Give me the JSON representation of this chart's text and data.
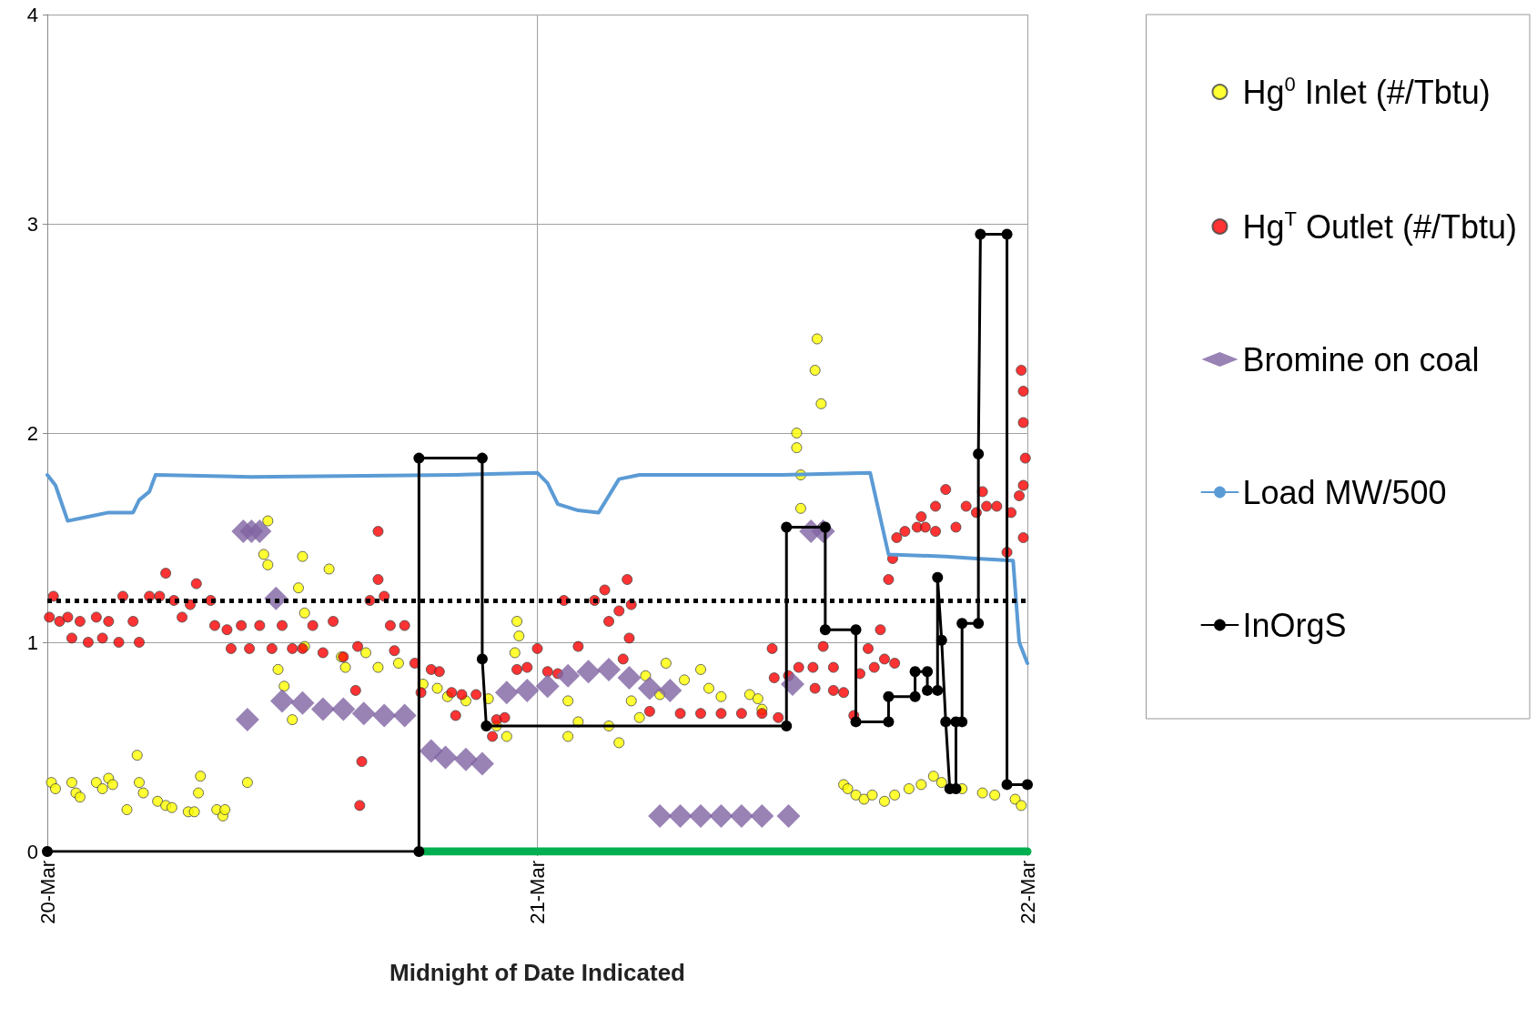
{
  "chart_data": {
    "type": "scatter",
    "xlabel": "Midnight of Date Indicated",
    "xlim": [
      "--03-20",
      "--03-22"
    ],
    "xticks": [
      {
        "value": "--03-20",
        "label": "20-Mar"
      },
      {
        "value": "--03-21",
        "label": "21-Mar"
      },
      {
        "value": "--03-22",
        "label": "22-Mar"
      }
    ],
    "ylim": [
      0,
      4
    ],
    "yticks": [
      0,
      1,
      2,
      3,
      4
    ],
    "grid": true,
    "legend": "right",
    "ref_lines": [
      {
        "axis": "y",
        "value": 1.2,
        "color": "#000000",
        "line_style": "dotted"
      }
    ],
    "series": [
      {
        "name": "Hg$^{0}$ Inlet (#/Tbtu)",
        "marker": "circle",
        "color": "#ffff00",
        "x": [
          "--03-20T00:12",
          "--03-20T00:24",
          "--03-20T01:12",
          "--03-20T01:24",
          "--03-20T01:36",
          "--03-20T02:24",
          "--03-20T02:42",
          "--03-20T03:00",
          "--03-20T03:12",
          "--03-20T03:54",
          "--03-20T04:24",
          "--03-20T04:30",
          "--03-20T04:42",
          "--03-20T05:24",
          "--03-20T05:48",
          "--03-20T06:06",
          "--03-20T06:54",
          "--03-20T07:12",
          "--03-20T07:24",
          "--03-20T07:30",
          "--03-20T08:18",
          "--03-20T08:36",
          "--03-20T08:42",
          "--03-20T09:48",
          "--03-20T10:48",
          "--03-20T10:36",
          "--03-20T10:48",
          "--03-20T12:30",
          "--03-20T13:48",
          "--03-20T12:18",
          "--03-20T12:36",
          "--03-20T12:36",
          "--03-20T11:18",
          "--03-20T11:36",
          "--03-20T12:00",
          "--03-20T14:24",
          "--03-20T14:36",
          "--03-20T15:36",
          "--03-20T16:12",
          "--03-20T17:12",
          "--03-20T18:24",
          "--03-20T19:06",
          "--03-20T19:36",
          "--03-20T20:30",
          "--03-20T21:36",
          "--03-20T22:00",
          "--03-20T22:30",
          "--03-20T23:00",
          "--03-20T23:06",
          "--03-20T22:54",
          "--03-21T01:30",
          "--03-21T02:00",
          "--03-21T01:30",
          "--03-21T03:30",
          "--03-21T04:00",
          "--03-21T04:36",
          "--03-21T05:00",
          "--03-21T05:18",
          "--03-21T06:00",
          "--03-21T06:18",
          "--03-21T07:12",
          "--03-21T08:00",
          "--03-21T08:24",
          "--03-21T09:00",
          "--03-21T10:24",
          "--03-21T10:48",
          "--03-21T11:00",
          "--03-21T12:42",
          "--03-21T12:42",
          "--03-21T12:54",
          "--03-21T12:54",
          "--03-21T13:42",
          "--03-21T13:36",
          "--03-21T13:54",
          "--03-21T14:00",
          "--03-21T15:00",
          "--03-21T15:12",
          "--03-21T15:36",
          "--03-21T16:00",
          "--03-21T16:24",
          "--03-21T17:00",
          "--03-21T17:30",
          "--03-21T18:12",
          "--03-21T18:48",
          "--03-21T19:24",
          "--03-21T19:48",
          "--03-21T20:48",
          "--03-21T21:48",
          "--03-21T22:24",
          "--03-21T23:24",
          "--03-21T23:42"
        ],
        "values": [
          0.33,
          0.3,
          0.33,
          0.28,
          0.26,
          0.33,
          0.3,
          0.35,
          0.32,
          0.2,
          0.46,
          0.33,
          0.28,
          0.24,
          0.22,
          0.21,
          0.19,
          0.19,
          0.28,
          0.36,
          0.2,
          0.17,
          0.2,
          0.33,
          1.58,
          1.42,
          1.37,
          1.41,
          1.35,
          1.26,
          1.14,
          0.98,
          0.87,
          0.79,
          0.63,
          0.93,
          0.88,
          0.95,
          0.88,
          0.9,
          0.8,
          0.78,
          0.74,
          0.72,
          0.73,
          0.6,
          0.55,
          1.1,
          1.03,
          0.95,
          0.72,
          0.62,
          0.55,
          0.6,
          0.52,
          0.72,
          0.64,
          0.84,
          0.75,
          0.9,
          0.82,
          0.87,
          0.78,
          0.74,
          0.75,
          0.73,
          0.68,
          2.0,
          1.93,
          1.8,
          1.64,
          2.45,
          2.3,
          2.14,
          1.55,
          0.32,
          0.3,
          0.27,
          0.25,
          0.27,
          0.24,
          0.27,
          0.3,
          0.32,
          0.36,
          0.33,
          0.3,
          0.28,
          0.27,
          0.25,
          0.22
        ]
      },
      {
        "name": "Hg$^{T}$ Outlet (#/Tbtu)",
        "marker": "circle",
        "color": "#ff0000",
        "x": [
          "--03-20T00:06",
          "--03-20T00:18",
          "--03-20T00:36",
          "--03-20T01:00",
          "--03-20T01:12",
          "--03-20T01:36",
          "--03-20T02:00",
          "--03-20T02:24",
          "--03-20T02:42",
          "--03-20T03:00",
          "--03-20T03:30",
          "--03-20T03:42",
          "--03-20T04:12",
          "--03-20T04:30",
          "--03-20T05:00",
          "--03-20T05:30",
          "--03-20T05:48",
          "--03-20T06:12",
          "--03-20T06:36",
          "--03-20T07:00",
          "--03-20T07:18",
          "--03-20T08:00",
          "--03-20T08:12",
          "--03-20T08:48",
          "--03-20T09:00",
          "--03-20T09:30",
          "--03-20T09:54",
          "--03-20T10:24",
          "--03-20T11:00",
          "--03-20T11:30",
          "--03-20T12:00",
          "--03-20T12:30",
          "--03-20T13:00",
          "--03-20T13:30",
          "--03-20T14:00",
          "--03-20T14:30",
          "--03-20T15:06",
          "--03-20T15:24",
          "--03-20T15:18",
          "--03-20T15:12",
          "--03-20T15:48",
          "--03-20T16:12",
          "--03-20T16:12",
          "--03-20T16:30",
          "--03-20T16:48",
          "--03-20T17:00",
          "--03-20T17:30",
          "--03-20T18:00",
          "--03-20T18:18",
          "--03-20T18:48",
          "--03-20T19:12",
          "--03-20T19:48",
          "--03-20T20:18",
          "--03-20T21:00",
          "--03-20T20:00",
          "--03-20T21:48",
          "--03-20T22:00",
          "--03-20T22:24",
          "--03-20T23:00",
          "--03-20T23:30",
          "--03-21T00:00",
          "--03-21T00:30",
          "--03-21T01:00",
          "--03-21T01:18",
          "--03-21T02:00",
          "--03-21T02:48",
          "--03-21T03:18",
          "--03-21T03:30",
          "--03-21T04:00",
          "--03-21T04:24",
          "--03-21T04:30",
          "--03-21T04:12",
          "--03-21T04:36",
          "--03-21T05:30",
          "--03-21T07:00",
          "--03-21T08:00",
          "--03-21T09:00",
          "--03-21T10:00",
          "--03-21T11:00",
          "--03-21T11:48",
          "--03-21T11:30",
          "--03-21T11:36",
          "--03-21T12:18",
          "--03-21T12:48",
          "--03-21T13:30",
          "--03-21T14:00",
          "--03-21T14:30",
          "--03-21T13:36",
          "--03-21T14:30",
          "--03-21T15:00",
          "--03-21T15:30",
          "--03-21T15:48",
          "--03-21T16:12",
          "--03-21T16:48",
          "--03-21T16:30",
          "--03-21T17:00",
          "--03-21T17:30",
          "--03-21T17:12",
          "--03-21T17:24",
          "--03-21T17:36",
          "--03-21T18:00",
          "--03-21T18:36",
          "--03-21T19:00",
          "--03-21T19:30",
          "--03-21T18:48",
          "--03-21T19:30",
          "--03-21T20:00",
          "--03-21T20:30",
          "--03-21T21:00",
          "--03-21T21:30",
          "--03-21T21:48",
          "--03-21T22:00",
          "--03-21T22:30",
          "--03-21T23:12",
          "--03-21T23:36",
          "--03-21T23:48",
          "--03-21T23:42",
          "--03-21T23:48",
          "--03-21T23:48",
          "--03-21T23:54",
          "--03-21T23:48",
          "--03-21T23:00"
        ],
        "values": [
          1.12,
          1.22,
          1.1,
          1.12,
          1.02,
          1.1,
          1.0,
          1.12,
          1.02,
          1.1,
          1.0,
          1.22,
          1.1,
          1.0,
          1.22,
          1.22,
          1.33,
          1.2,
          1.12,
          1.18,
          1.28,
          1.2,
          1.08,
          1.06,
          0.97,
          1.08,
          0.97,
          1.08,
          0.97,
          1.08,
          0.97,
          0.97,
          1.08,
          0.95,
          1.1,
          0.93,
          0.77,
          0.43,
          0.22,
          0.98,
          1.2,
          1.53,
          1.3,
          1.22,
          1.08,
          0.96,
          1.08,
          0.9,
          0.76,
          0.87,
          0.86,
          0.76,
          0.75,
          0.75,
          0.65,
          0.55,
          0.63,
          0.64,
          0.87,
          0.88,
          0.97,
          0.86,
          0.85,
          1.2,
          0.98,
          1.2,
          1.25,
          1.1,
          1.15,
          1.3,
          1.02,
          0.92,
          1.18,
          0.67,
          0.66,
          0.66,
          0.66,
          0.66,
          0.66,
          0.64,
          0.97,
          0.83,
          0.84,
          0.88,
          0.88,
          0.98,
          0.88,
          0.78,
          0.77,
          0.76,
          0.65,
          0.85,
          0.97,
          1.06,
          0.88,
          0.92,
          0.9,
          1.3,
          1.4,
          1.5,
          1.53,
          1.55,
          1.55,
          1.53,
          1.6,
          1.65,
          1.73,
          1.55,
          1.65,
          1.62,
          1.72,
          1.65,
          1.65,
          1.62,
          1.7,
          1.75,
          2.3,
          2.2,
          2.05,
          1.88,
          1.5,
          1.43
        ]
      },
      {
        "name": "Bromine on coal",
        "marker": "diamond",
        "color": "#8064a2",
        "x": [
          "--03-20T09:36",
          "--03-20T10:00",
          "--03-20T10:24",
          "--03-20T11:12",
          "--03-20T09:48",
          "--03-20T11:30",
          "--03-20T12:30",
          "--03-20T13:30",
          "--03-20T14:30",
          "--03-20T15:30",
          "--03-20T16:30",
          "--03-20T17:30",
          "--03-20T18:48",
          "--03-20T19:30",
          "--03-20T20:30",
          "--03-20T21:18",
          "--03-20T22:30",
          "--03-20T23:30",
          "--03-21T00:30",
          "--03-21T01:30",
          "--03-21T02:30",
          "--03-21T03:30",
          "--03-21T04:30",
          "--03-21T05:30",
          "--03-21T06:30",
          "--03-21T06:00",
          "--03-21T07:00",
          "--03-21T08:00",
          "--03-21T09:00",
          "--03-21T10:00",
          "--03-21T11:00",
          "--03-21T12:18",
          "--03-21T12:30",
          "--03-21T13:24",
          "--03-21T14:00"
        ],
        "values": [
          1.53,
          1.53,
          1.53,
          1.21,
          0.63,
          0.72,
          0.71,
          0.68,
          0.68,
          0.66,
          0.65,
          0.65,
          0.48,
          0.45,
          0.44,
          0.42,
          0.76,
          0.77,
          0.79,
          0.84,
          0.86,
          0.87,
          0.83,
          0.78,
          0.77,
          0.17,
          0.17,
          0.17,
          0.17,
          0.17,
          0.17,
          0.17,
          0.8,
          1.53,
          1.53
        ]
      },
      {
        "name": "Load MW/500",
        "type": "line",
        "marker": "none",
        "color": "#5b9bd5",
        "x": [
          "--03-20T00:00",
          "--03-20T00:24",
          "--03-20T01:00",
          "--03-20T02:00",
          "--03-20T03:00",
          "--03-20T04:12",
          "--03-20T04:30",
          "--03-20T05:00",
          "--03-20T05:18",
          "--03-20T10:00",
          "--03-20T20:00",
          "--03-21T00:00",
          "--03-21T00:30",
          "--03-21T01:00",
          "--03-21T02:00",
          "--03-21T03:00",
          "--03-21T03:30",
          "--03-21T04:00",
          "--03-21T05:00",
          "--03-21T12:00",
          "--03-21T16:18",
          "--03-21T17:12",
          "--03-21T20:00",
          "--03-21T21:30",
          "--03-21T23:18",
          "--03-21T23:36",
          "--03-22T00:00"
        ],
        "values": [
          1.8,
          1.75,
          1.58,
          1.6,
          1.62,
          1.62,
          1.68,
          1.72,
          1.8,
          1.79,
          1.8,
          1.81,
          1.76,
          1.66,
          1.63,
          1.62,
          1.7,
          1.78,
          1.8,
          1.8,
          1.81,
          1.42,
          1.41,
          1.4,
          1.39,
          1.0,
          0.9
        ]
      },
      {
        "type": "line",
        "marker": "none",
        "color": "#00b050",
        "x": [
          "--03-20T18:12",
          "--03-22T00:00"
        ],
        "values": [
          0,
          0
        ]
      },
      {
        "name": "InOrgS",
        "type": "line",
        "marker": "circle",
        "color": "#000000",
        "x": [
          "--03-20T00:00",
          "--03-20T18:12",
          "--03-20T18:12",
          "--03-20T21:18",
          "--03-20T21:18",
          "--03-20T21:30",
          "--03-21T12:12",
          "--03-21T12:12",
          "--03-21T14:06",
          "--03-21T14:06",
          "--03-21T15:36",
          "--03-21T15:36",
          "--03-21T17:12",
          "--03-21T17:12",
          "--03-21T18:30",
          "--03-21T18:30",
          "--03-21T19:06",
          "--03-21T19:06",
          "--03-21T19:36",
          "--03-21T19:36",
          "--03-21T19:48",
          "--03-21T20:00",
          "--03-21T20:12",
          "--03-21T20:30",
          "--03-21T20:30",
          "--03-21T20:48",
          "--03-21T20:48",
          "--03-21T21:36",
          "--03-21T21:36",
          "--03-21T21:42",
          "--03-21T23:00",
          "--03-21T23:00",
          "--03-22T00:00"
        ],
        "values": [
          0,
          0,
          1.88,
          1.88,
          0.92,
          0.6,
          0.6,
          1.55,
          1.55,
          1.06,
          1.06,
          0.62,
          0.62,
          0.74,
          0.74,
          0.86,
          0.86,
          0.77,
          0.77,
          1.31,
          1.01,
          0.62,
          0.3,
          0.3,
          0.62,
          0.62,
          1.09,
          1.09,
          1.9,
          2.95,
          2.95,
          0.32,
          0.32
        ]
      }
    ]
  }
}
